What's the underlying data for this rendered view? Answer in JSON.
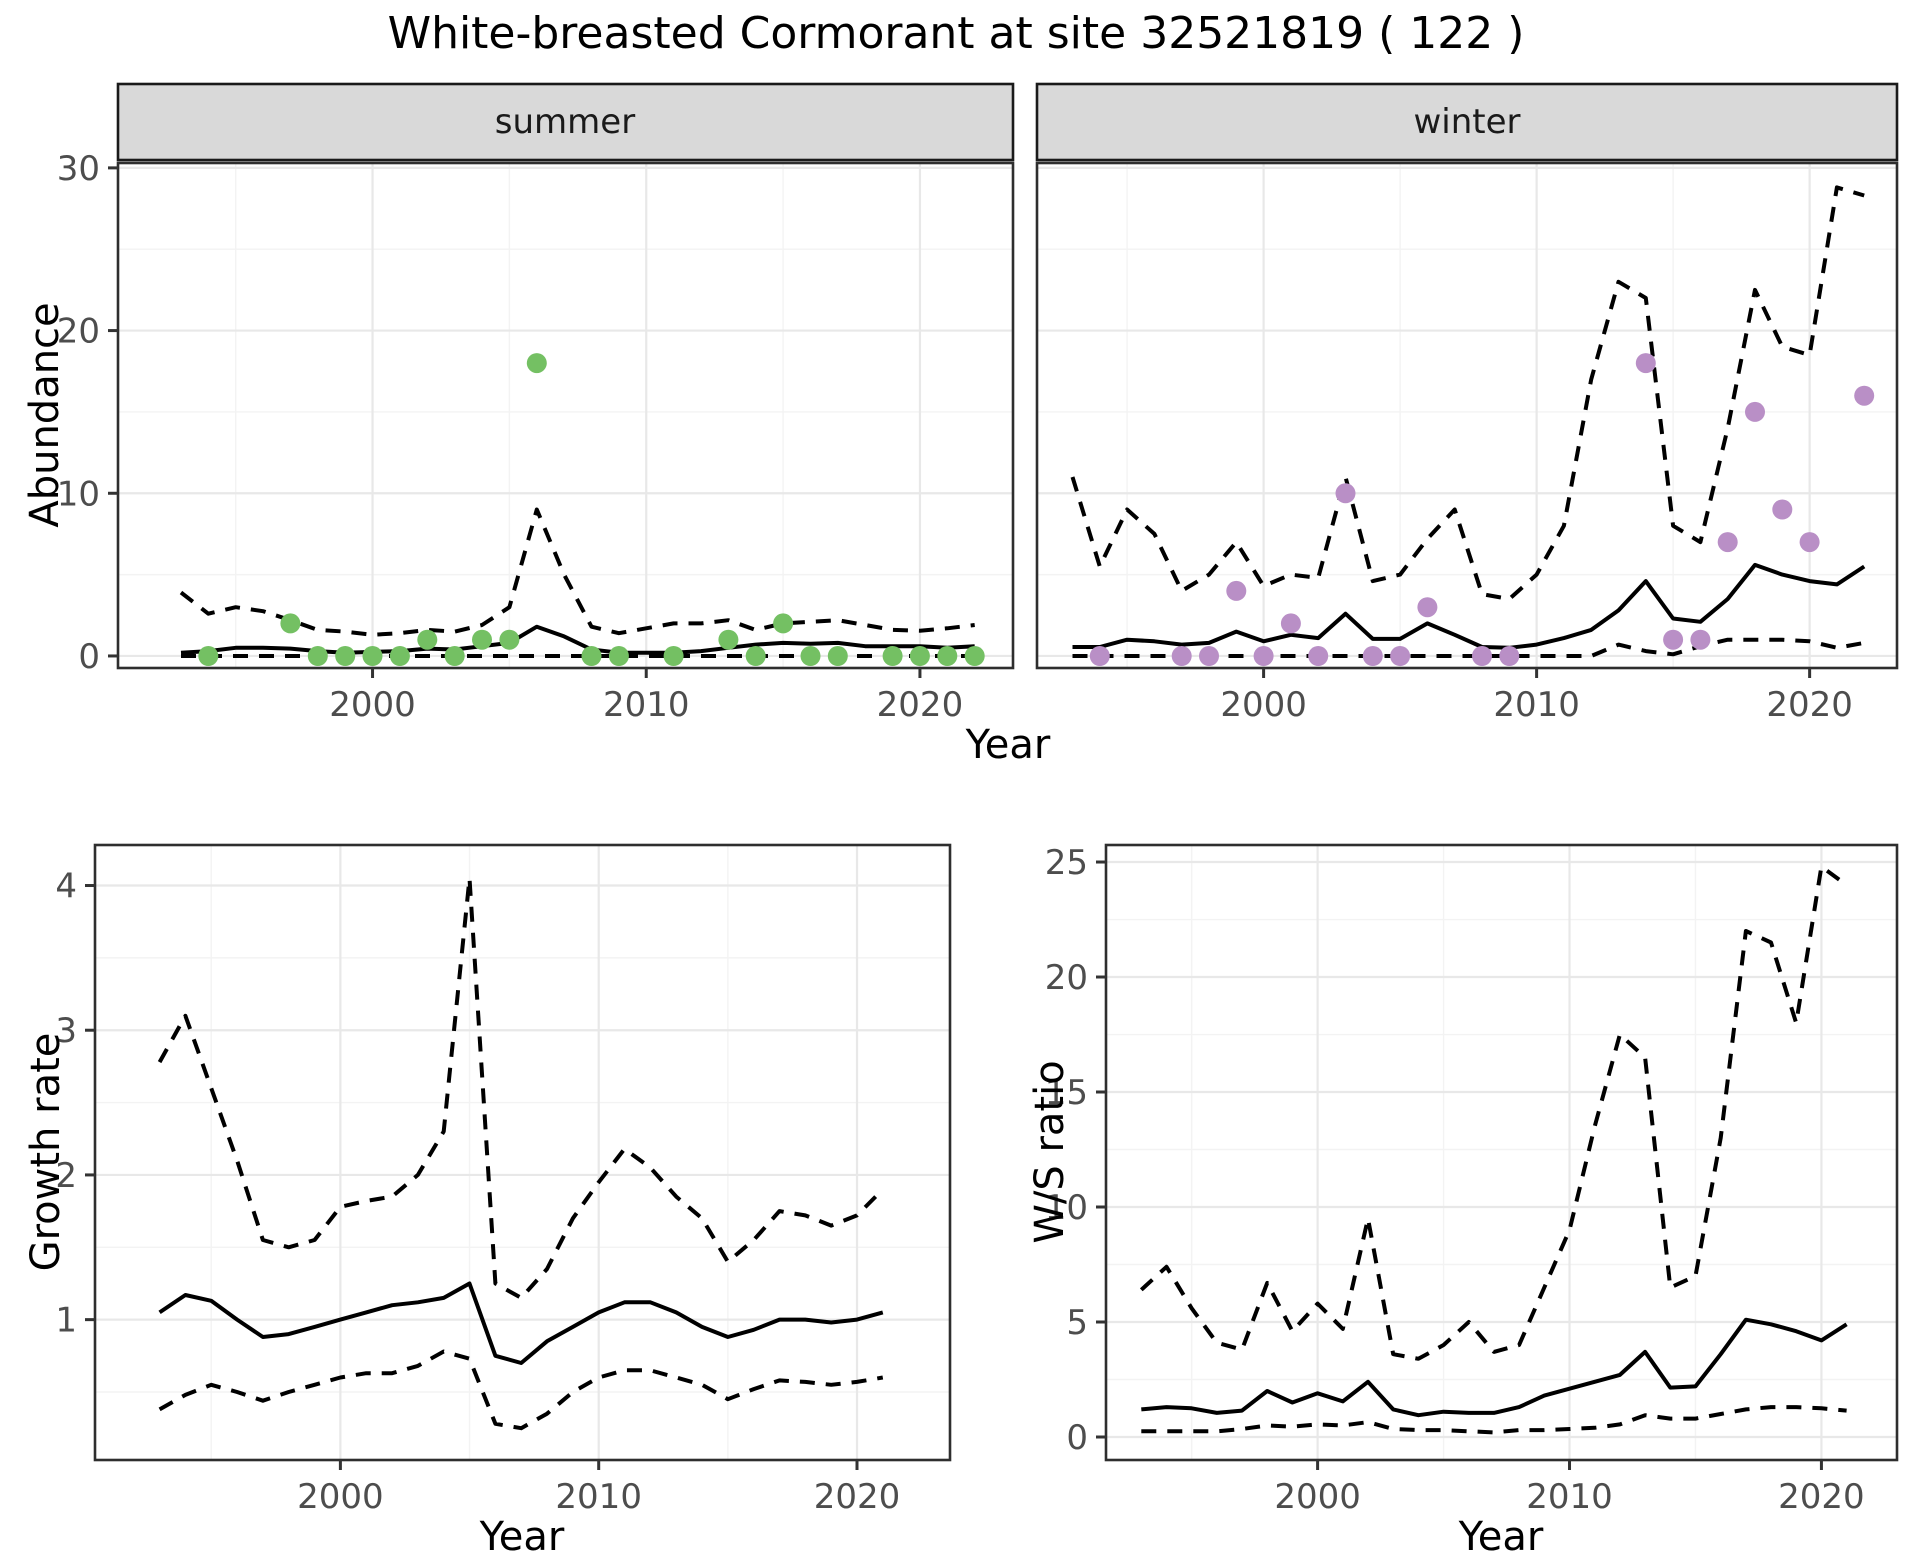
{
  "title": "White-breasted Cormorant at site 32521819 ( 122 )",
  "facets": {
    "summer": "summer",
    "winter": "winter"
  },
  "axis_titles": {
    "x": "Year",
    "y_abundance": "Abundance",
    "y_growth": "Growth rate",
    "y_ws": "W/S ratio"
  },
  "colors": {
    "summer_point": "#74c063",
    "winter_point": "#b98fc6",
    "line": "#000000",
    "grid_major": "#e8e8e8",
    "grid_minor": "#f3f3f3",
    "strip_bg": "#d9d9d9",
    "strip_border": "#1a1a1a",
    "panel_border": "#2e2e2e",
    "panel_bg": "#ffffff",
    "tick_mark": "#333333",
    "tick_text": "#4d4d4d"
  },
  "chart_data": [
    {
      "id": "abundance_summer",
      "type": "line",
      "facet": "summer",
      "xlabel": "Year",
      "ylabel": "Abundance",
      "xlim": [
        1990.7,
        2023.4
      ],
      "ylim": [
        -0.74,
        30.3
      ],
      "xticks": [
        2000,
        2010,
        2020
      ],
      "yticks": [
        0,
        10,
        20,
        30
      ],
      "show_yticklabels": true,
      "x": [
        1993,
        1994,
        1995,
        1996,
        1997,
        1998,
        1999,
        2000,
        2001,
        2002,
        2003,
        2004,
        2005,
        2006,
        2007,
        2008,
        2009,
        2010,
        2011,
        2012,
        2013,
        2014,
        2015,
        2016,
        2017,
        2018,
        2019,
        2020,
        2021,
        2022
      ],
      "series": [
        {
          "name": "median",
          "style": "solid",
          "values": [
            0.2,
            0.3,
            0.5,
            0.5,
            0.45,
            0.3,
            0.2,
            0.25,
            0.3,
            0.45,
            0.4,
            0.6,
            0.8,
            1.8,
            1.2,
            0.4,
            0.2,
            0.2,
            0.2,
            0.3,
            0.5,
            0.7,
            0.8,
            0.75,
            0.8,
            0.6,
            0.6,
            0.6,
            0.5,
            0.6
          ]
        },
        {
          "name": "upper_ci",
          "style": "dashed",
          "values": [
            3.9,
            2.6,
            3.0,
            2.75,
            2.2,
            1.6,
            1.5,
            1.3,
            1.4,
            1.6,
            1.5,
            1.9,
            3.0,
            9.0,
            5.0,
            1.8,
            1.4,
            1.7,
            2.0,
            2.0,
            2.2,
            1.6,
            2.0,
            2.1,
            2.2,
            1.9,
            1.6,
            1.55,
            1.7,
            1.9
          ]
        },
        {
          "name": "lower_ci",
          "style": "dashed",
          "values": [
            0,
            0,
            0,
            0,
            0,
            0,
            0,
            0,
            0,
            0,
            0,
            0,
            0,
            0,
            0,
            0,
            0,
            0,
            0,
            0,
            0,
            0,
            0,
            0,
            0,
            0,
            0,
            0,
            0,
            0
          ]
        }
      ],
      "points": {
        "name": "observed_counts",
        "color_key": "summer_point",
        "data": [
          [
            1994,
            0
          ],
          [
            1997,
            2
          ],
          [
            1998,
            0
          ],
          [
            1999,
            0
          ],
          [
            2000,
            0
          ],
          [
            2001,
            0
          ],
          [
            2002,
            1
          ],
          [
            2003,
            0
          ],
          [
            2004,
            1
          ],
          [
            2005,
            1
          ],
          [
            2006,
            18
          ],
          [
            2008,
            0
          ],
          [
            2009,
            0
          ],
          [
            2011,
            0
          ],
          [
            2013,
            1
          ],
          [
            2014,
            0
          ],
          [
            2015,
            2
          ],
          [
            2016,
            0
          ],
          [
            2017,
            0
          ],
          [
            2019,
            0
          ],
          [
            2020,
            0
          ],
          [
            2021,
            0
          ],
          [
            2022,
            0
          ]
        ]
      }
    },
    {
      "id": "abundance_winter",
      "type": "line",
      "facet": "winter",
      "xlabel": "Year",
      "ylabel": "Abundance",
      "xlim": [
        1991.7,
        2023.2
      ],
      "ylim": [
        -0.74,
        30.3
      ],
      "xticks": [
        2000,
        2010,
        2020
      ],
      "yticks": [
        0,
        10,
        20,
        30
      ],
      "show_yticklabels": false,
      "x": [
        1993,
        1994,
        1995,
        1996,
        1997,
        1998,
        1999,
        2000,
        2001,
        2002,
        2003,
        2004,
        2005,
        2006,
        2007,
        2008,
        2009,
        2010,
        2011,
        2012,
        2013,
        2014,
        2015,
        2016,
        2017,
        2018,
        2019,
        2020,
        2021,
        2022
      ],
      "series": [
        {
          "name": "median",
          "style": "solid",
          "values": [
            0.55,
            0.55,
            1.0,
            0.9,
            0.7,
            0.8,
            1.5,
            0.9,
            1.3,
            1.1,
            2.6,
            1.05,
            1.05,
            2.0,
            1.3,
            0.55,
            0.5,
            0.7,
            1.1,
            1.6,
            2.8,
            4.6,
            2.3,
            2.1,
            3.5,
            5.6,
            5.0,
            4.6,
            4.4,
            5.5
          ]
        },
        {
          "name": "upper_ci",
          "style": "dashed",
          "values": [
            11,
            5.5,
            9,
            7.5,
            4,
            5,
            7,
            4.3,
            5,
            4.8,
            11,
            4.6,
            5,
            7.2,
            9,
            3.8,
            3.5,
            5,
            8,
            17,
            23,
            22,
            8,
            7,
            14,
            22.5,
            19,
            18.5,
            28.8,
            28.3
          ]
        },
        {
          "name": "lower_ci",
          "style": "dashed",
          "values": [
            0,
            0,
            0,
            0,
            0,
            0,
            0,
            0,
            0,
            0,
            0,
            0,
            0,
            0,
            0,
            0,
            0,
            0,
            0,
            0,
            0.7,
            0.3,
            0.1,
            0.6,
            1.0,
            1.0,
            1.0,
            0.9,
            0.5,
            0.8
          ]
        }
      ],
      "points": {
        "name": "observed_counts",
        "color_key": "winter_point",
        "data": [
          [
            1994,
            0
          ],
          [
            1997,
            0
          ],
          [
            1998,
            0
          ],
          [
            1999,
            4
          ],
          [
            2000,
            0
          ],
          [
            2001,
            2
          ],
          [
            2002,
            0
          ],
          [
            2003,
            10
          ],
          [
            2004,
            0
          ],
          [
            2005,
            0
          ],
          [
            2006,
            3
          ],
          [
            2008,
            0
          ],
          [
            2009,
            0
          ],
          [
            2014,
            18
          ],
          [
            2015,
            1
          ],
          [
            2016,
            1
          ],
          [
            2017,
            7
          ],
          [
            2018,
            15
          ],
          [
            2019,
            9
          ],
          [
            2020,
            7
          ],
          [
            2022,
            16
          ]
        ]
      }
    },
    {
      "id": "growth_rate",
      "type": "line",
      "xlabel": "Year",
      "ylabel": "Growth rate",
      "xlim": [
        1990.5,
        2023.6
      ],
      "ylim": [
        0.03,
        4.28
      ],
      "xticks": [
        2000,
        2010,
        2020
      ],
      "yticks": [
        1,
        2,
        3,
        4
      ],
      "show_yticklabels": true,
      "x": [
        1993,
        1994,
        1995,
        1996,
        1997,
        1998,
        1999,
        2000,
        2001,
        2002,
        2003,
        2004,
        2005,
        2006,
        2007,
        2008,
        2009,
        2010,
        2011,
        2012,
        2013,
        2014,
        2015,
        2016,
        2017,
        2018,
        2019,
        2020,
        2021
      ],
      "series": [
        {
          "name": "median",
          "style": "solid",
          "values": [
            1.05,
            1.17,
            1.13,
            1.0,
            0.88,
            0.9,
            0.95,
            1.0,
            1.05,
            1.1,
            1.12,
            1.15,
            1.25,
            0.75,
            0.7,
            0.85,
            0.95,
            1.05,
            1.12,
            1.12,
            1.05,
            0.95,
            0.88,
            0.93,
            1.0,
            1.0,
            0.98,
            1.0,
            1.05
          ]
        },
        {
          "name": "upper_ci",
          "style": "dashed",
          "values": [
            2.78,
            3.1,
            2.6,
            2.1,
            1.55,
            1.5,
            1.55,
            1.78,
            1.82,
            1.85,
            2.0,
            2.3,
            4.05,
            1.25,
            1.15,
            1.35,
            1.7,
            1.95,
            2.18,
            2.05,
            1.85,
            1.7,
            1.4,
            1.55,
            1.75,
            1.72,
            1.65,
            1.72,
            1.9
          ]
        },
        {
          "name": "lower_ci",
          "style": "dashed",
          "values": [
            0.38,
            0.48,
            0.55,
            0.5,
            0.44,
            0.5,
            0.55,
            0.6,
            0.63,
            0.63,
            0.68,
            0.78,
            0.73,
            0.28,
            0.25,
            0.35,
            0.5,
            0.6,
            0.65,
            0.65,
            0.6,
            0.55,
            0.45,
            0.52,
            0.58,
            0.57,
            0.55,
            0.57,
            0.6
          ]
        }
      ]
    },
    {
      "id": "ws_ratio",
      "type": "line",
      "xlabel": "Year",
      "ylabel": "W/S ratio",
      "xlim": [
        1991.6,
        2023.0
      ],
      "ylim": [
        -1.0,
        25.74
      ],
      "xticks": [
        2000,
        2010,
        2020
      ],
      "yticks": [
        0,
        5,
        10,
        15,
        20,
        25
      ],
      "show_yticklabels": true,
      "x": [
        1993,
        1994,
        1995,
        1996,
        1997,
        1998,
        1999,
        2000,
        2001,
        2002,
        2003,
        2004,
        2005,
        2006,
        2007,
        2008,
        2009,
        2010,
        2011,
        2012,
        2013,
        2014,
        2015,
        2016,
        2017,
        2018,
        2019,
        2020,
        2021
      ],
      "series": [
        {
          "name": "median",
          "style": "solid",
          "values": [
            1.2,
            1.3,
            1.25,
            1.05,
            1.15,
            2.0,
            1.5,
            1.9,
            1.55,
            2.4,
            1.2,
            0.95,
            1.1,
            1.05,
            1.05,
            1.3,
            1.8,
            2.1,
            2.4,
            2.7,
            3.7,
            2.15,
            2.2,
            3.6,
            5.1,
            4.9,
            4.6,
            4.2,
            4.9
          ]
        },
        {
          "name": "upper_ci",
          "style": "dashed",
          "values": [
            6.4,
            7.4,
            5.6,
            4.1,
            3.8,
            6.7,
            4.6,
            5.8,
            4.7,
            9.5,
            3.6,
            3.4,
            4.0,
            5.0,
            3.7,
            4.0,
            6.5,
            9.0,
            13.5,
            17.5,
            16.5,
            6.5,
            7.0,
            13.0,
            22.0,
            21.5,
            18.0,
            24.8,
            24.0
          ]
        },
        {
          "name": "lower_ci",
          "style": "dashed",
          "values": [
            0.25,
            0.25,
            0.25,
            0.25,
            0.35,
            0.5,
            0.45,
            0.55,
            0.5,
            0.65,
            0.35,
            0.3,
            0.3,
            0.25,
            0.2,
            0.3,
            0.3,
            0.35,
            0.4,
            0.55,
            0.95,
            0.8,
            0.8,
            1.0,
            1.2,
            1.3,
            1.3,
            1.25,
            1.15
          ]
        }
      ]
    }
  ]
}
